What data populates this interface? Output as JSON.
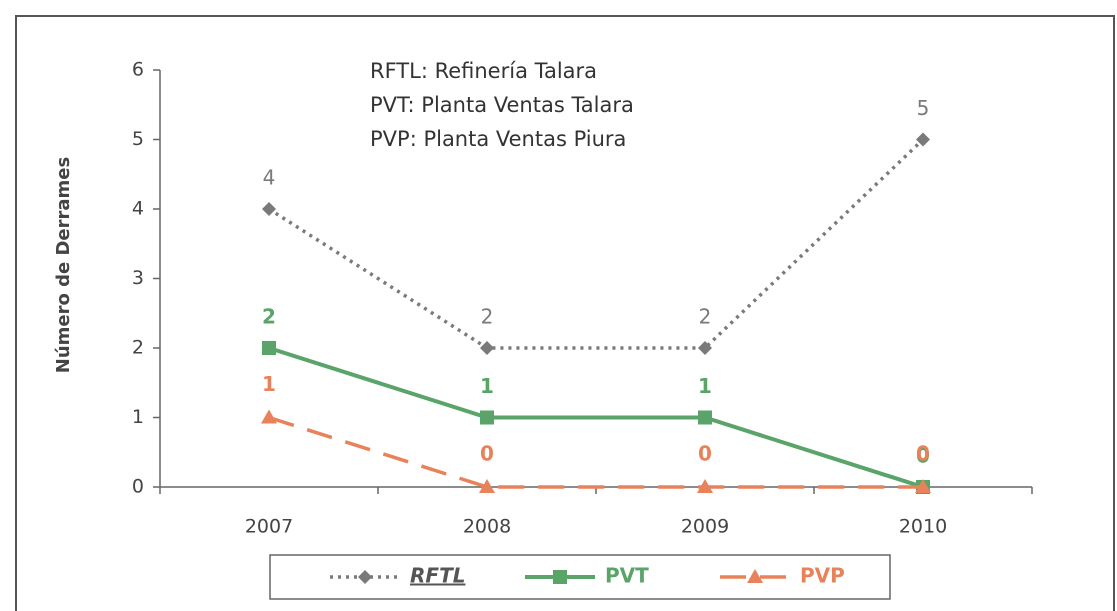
{
  "chart_data": {
    "type": "line",
    "y_label": "Número de Derrames",
    "annotations": [
      "RFTL: Refinería Talara",
      "PVT: Planta Ventas Talara",
      "PVP: Planta Ventas Piura"
    ],
    "categories": [
      "2007",
      "2008",
      "2009",
      "2010"
    ],
    "series": [
      {
        "name": "RFTL",
        "color": "#7a7a7a",
        "values": [
          4,
          2,
          2,
          5
        ]
      },
      {
        "name": "PVT",
        "color": "#5aa469",
        "values": [
          2,
          1,
          1,
          0
        ]
      },
      {
        "name": "PVP",
        "color": "#e8825a",
        "values": [
          1,
          0,
          0,
          0
        ]
      }
    ],
    "ylim": [
      0,
      6
    ],
    "yticks": [
      0,
      1,
      2,
      3,
      4,
      5,
      6
    ],
    "legend": "bottom"
  }
}
